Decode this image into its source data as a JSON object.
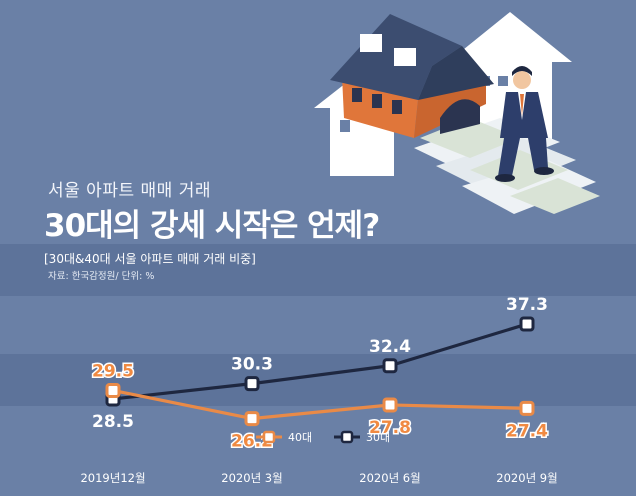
{
  "kicker": "서울 아파트 매매 거래",
  "headline": "30대의 강세 시작은 언제?",
  "subtitle": "[30대&40대 서울 아파트 매매 거래 비중]",
  "source": "자료: 한국감정원/ 단위: %",
  "colors": {
    "background": "#6a80a6",
    "band_dark": "#5d739a",
    "series_40s": "#e98a47",
    "series_30s": "#1e2740",
    "house_orange": "#e0763a",
    "house_roof": "#3c4d70"
  },
  "illustration": {
    "icons": [
      "house-icon",
      "arrow-house-icon",
      "businessman-icon",
      "money-stairs-icon"
    ]
  },
  "chart_data": {
    "type": "line",
    "categories": [
      "2019년12월",
      "2020년 3월",
      "2020년 6월",
      "2020년 9월"
    ],
    "series": [
      {
        "name": "40대",
        "values": [
          29.5,
          26.2,
          27.8,
          27.4
        ],
        "color": "#e98a47"
      },
      {
        "name": "30대",
        "values": [
          28.5,
          30.3,
          32.4,
          37.3
        ],
        "color": "#1e2740"
      }
    ],
    "title": "[30대&40대 서울 아파트 매매 거래 비중]",
    "xlabel": "",
    "ylabel": "",
    "legend": "bottom-center",
    "grid": false
  }
}
